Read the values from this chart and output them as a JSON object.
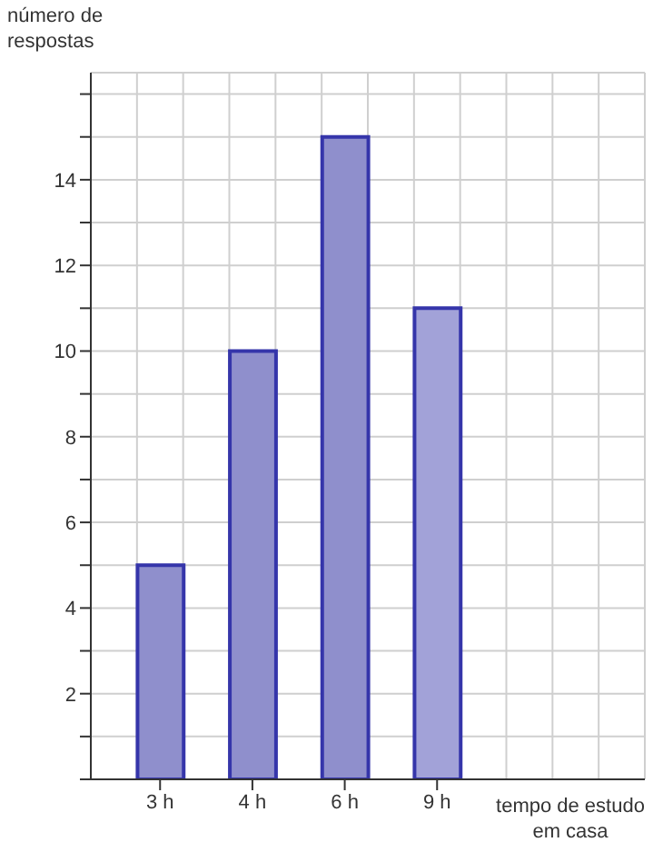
{
  "chart_data": {
    "type": "bar",
    "ylabel": "número de respostas",
    "xlabel": "tempo de estudo em casa",
    "categories": [
      "3 h",
      "4 h",
      "6 h",
      "9 h"
    ],
    "values": [
      5,
      10,
      15,
      11
    ],
    "colors": [
      "#8f8fcc",
      "#8f8fcc",
      "#8f8fcc",
      "#a2a2d8"
    ],
    "ylim": [
      0,
      16.5
    ],
    "yticks": [
      {
        "value": 0,
        "label": null
      },
      {
        "value": 1,
        "label": null
      },
      2,
      {
        "value": 3,
        "label": null
      },
      4,
      {
        "value": 5,
        "label": null
      },
      6,
      {
        "value": 7,
        "label": null
      },
      8,
      {
        "value": 9,
        "label": null
      },
      10,
      {
        "value": 11,
        "label": null
      },
      12,
      {
        "value": 13,
        "label": null
      },
      14,
      {
        "value": 15,
        "label": null
      },
      {
        "value": 16,
        "label": null
      }
    ],
    "grid": true,
    "legend": false
  }
}
